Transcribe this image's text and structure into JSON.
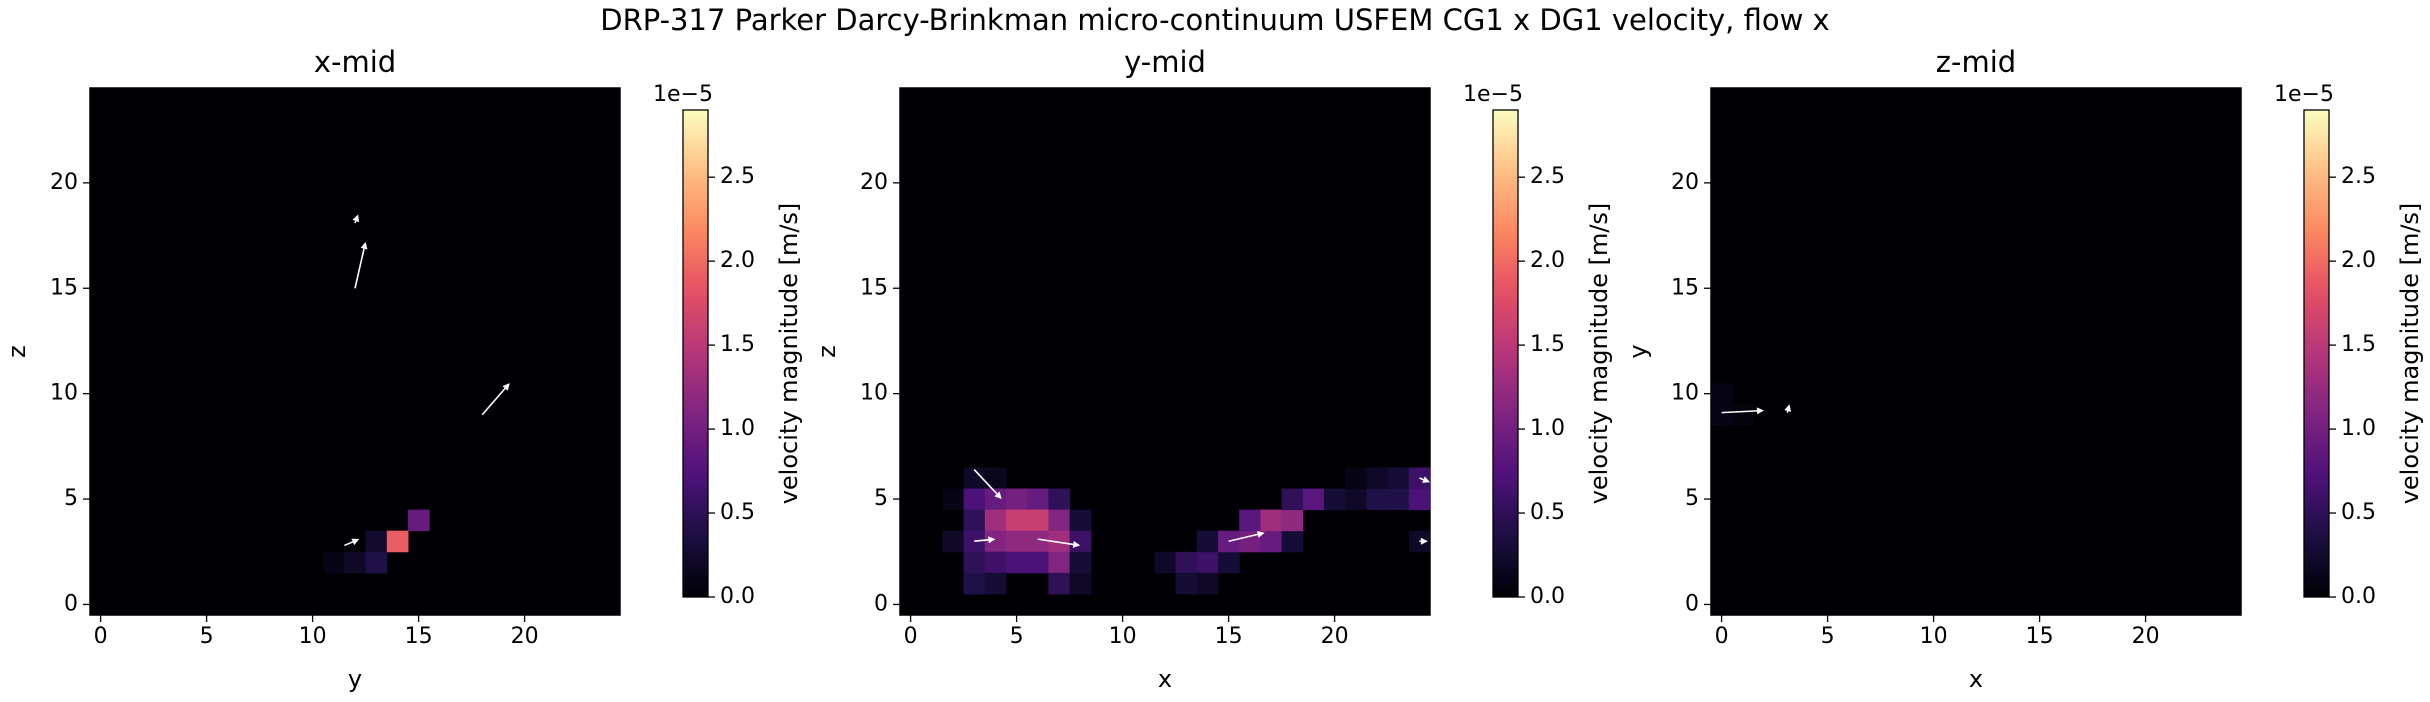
{
  "title": "DRP-317 Parker Darcy-Brinkman micro-continuum USFEM CG1 x DG1 velocity, flow x",
  "chart_data": [
    {
      "type": "heatmap",
      "title": "x-mid",
      "xlabel": "y",
      "ylabel": "z",
      "xlim": [
        -0.5,
        24.5
      ],
      "ylim": [
        -0.5,
        24.5
      ],
      "xticks": [
        0,
        5,
        10,
        15,
        20
      ],
      "yticks": [
        0,
        5,
        10,
        15,
        20
      ],
      "colormap": "magma",
      "clim": [
        0,
        2.9
      ],
      "cticks": [
        {
          "value": 0,
          "label": "0.0"
        },
        {
          "value": 0.5,
          "label": "0.5"
        },
        {
          "value": 1,
          "label": "1.0"
        },
        {
          "value": 1.5,
          "label": "1.5"
        },
        {
          "value": 2,
          "label": "2.0"
        },
        {
          "value": 2.5,
          "label": "2.5"
        }
      ],
      "cbar_offset": "1e−5",
      "cbar_label": "velocity magnitude [m/s]",
      "cells": [
        [
          11,
          2,
          0.1
        ],
        [
          12,
          2,
          0.2
        ],
        [
          13,
          2,
          0.4
        ],
        [
          13,
          3,
          0.25
        ],
        [
          14,
          3,
          1.9
        ],
        [
          15,
          4,
          0.9
        ]
      ],
      "arrows": [
        [
          12,
          15,
          0.5,
          2.2
        ],
        [
          12,
          18.1,
          0.15,
          0.4
        ],
        [
          18,
          9,
          1.3,
          1.5
        ],
        [
          11.5,
          2.8,
          0.7,
          0.3
        ]
      ]
    },
    {
      "type": "heatmap",
      "title": "y-mid",
      "xlabel": "x",
      "ylabel": "z",
      "xlim": [
        -0.5,
        24.5
      ],
      "ylim": [
        -0.5,
        24.5
      ],
      "xticks": [
        0,
        5,
        10,
        15,
        20
      ],
      "yticks": [
        0,
        5,
        10,
        15,
        20
      ],
      "colormap": "magma",
      "clim": [
        0,
        2.9
      ],
      "cticks": [
        {
          "value": 0,
          "label": "0.0"
        },
        {
          "value": 0.5,
          "label": "0.5"
        },
        {
          "value": 1,
          "label": "1.0"
        },
        {
          "value": 1.5,
          "label": "1.5"
        },
        {
          "value": 2,
          "label": "2.0"
        },
        {
          "value": 2.5,
          "label": "2.5"
        }
      ],
      "cbar_offset": "1e−5",
      "cbar_label": "velocity magnitude [m/s]",
      "cells": [
        [
          3,
          6,
          0.2
        ],
        [
          4,
          6,
          0.15
        ],
        [
          2,
          5,
          0.1
        ],
        [
          3,
          5,
          0.7
        ],
        [
          4,
          5,
          0.9
        ],
        [
          5,
          5,
          1.0
        ],
        [
          6,
          5,
          0.9
        ],
        [
          7,
          5,
          0.5
        ],
        [
          3,
          4,
          0.5
        ],
        [
          4,
          4,
          1.3
        ],
        [
          5,
          4,
          1.6
        ],
        [
          6,
          4,
          1.6
        ],
        [
          7,
          4,
          1.1
        ],
        [
          8,
          4,
          0.3
        ],
        [
          2,
          3,
          0.2
        ],
        [
          3,
          3,
          0.6
        ],
        [
          4,
          3,
          1.1
        ],
        [
          5,
          3,
          1.2
        ],
        [
          6,
          3,
          1.2
        ],
        [
          7,
          3,
          1.3
        ],
        [
          8,
          3,
          0.6
        ],
        [
          3,
          2,
          0.5
        ],
        [
          4,
          2,
          0.6
        ],
        [
          5,
          2,
          0.7
        ],
        [
          6,
          2,
          0.7
        ],
        [
          7,
          2,
          1.1
        ],
        [
          8,
          2,
          0.3
        ],
        [
          3,
          1,
          0.4
        ],
        [
          4,
          1,
          0.3
        ],
        [
          7,
          1,
          0.5
        ],
        [
          8,
          1,
          0.2
        ],
        [
          12,
          2,
          0.2
        ],
        [
          13,
          2,
          0.5
        ],
        [
          14,
          2,
          0.6
        ],
        [
          15,
          2,
          0.3
        ],
        [
          13,
          1,
          0.3
        ],
        [
          14,
          1,
          0.2
        ],
        [
          14,
          3,
          0.3
        ],
        [
          15,
          3,
          0.9
        ],
        [
          16,
          3,
          1.0
        ],
        [
          17,
          3,
          0.9
        ],
        [
          18,
          3,
          0.3
        ],
        [
          16,
          4,
          0.8
        ],
        [
          17,
          4,
          1.3
        ],
        [
          18,
          4,
          1.2
        ],
        [
          18,
          5,
          0.5
        ],
        [
          19,
          5,
          0.8
        ],
        [
          20,
          5,
          0.3
        ],
        [
          21,
          5,
          0.2
        ],
        [
          22,
          5,
          0.4
        ],
        [
          23,
          5,
          0.4
        ],
        [
          24,
          5,
          0.7
        ],
        [
          21,
          6,
          0.1
        ],
        [
          22,
          6,
          0.2
        ],
        [
          23,
          6,
          0.3
        ],
        [
          24,
          6,
          0.6
        ],
        [
          24,
          3,
          0.2
        ]
      ],
      "arrows": [
        [
          3,
          6.4,
          1.3,
          -1.4
        ],
        [
          3,
          3,
          1,
          0.1
        ],
        [
          6,
          3.1,
          2,
          -0.3
        ],
        [
          15,
          3,
          1.7,
          0.4
        ],
        [
          24,
          6,
          0.5,
          -0.2
        ],
        [
          24,
          3,
          0.4,
          0
        ]
      ]
    },
    {
      "type": "heatmap",
      "title": "z-mid",
      "xlabel": "x",
      "ylabel": "y",
      "xlim": [
        -0.5,
        24.5
      ],
      "ylim": [
        -0.5,
        24.5
      ],
      "xticks": [
        0,
        5,
        10,
        15,
        20
      ],
      "yticks": [
        0,
        5,
        10,
        15,
        20
      ],
      "colormap": "magma",
      "clim": [
        0,
        2.9
      ],
      "cticks": [
        {
          "value": 0,
          "label": "0.0"
        },
        {
          "value": 0.5,
          "label": "0.5"
        },
        {
          "value": 1,
          "label": "1.0"
        },
        {
          "value": 1.5,
          "label": "1.5"
        },
        {
          "value": 2,
          "label": "2.0"
        },
        {
          "value": 2.5,
          "label": "2.5"
        }
      ],
      "cbar_offset": "1e−5",
      "cbar_label": "velocity magnitude [m/s]",
      "cells": [
        [
          0,
          9,
          0.1
        ],
        [
          0,
          10,
          0.08
        ],
        [
          1,
          9,
          0.06
        ]
      ],
      "arrows": [
        [
          0,
          9.1,
          2,
          0.1
        ],
        [
          3.1,
          9.1,
          0.1,
          0.4
        ]
      ]
    }
  ]
}
